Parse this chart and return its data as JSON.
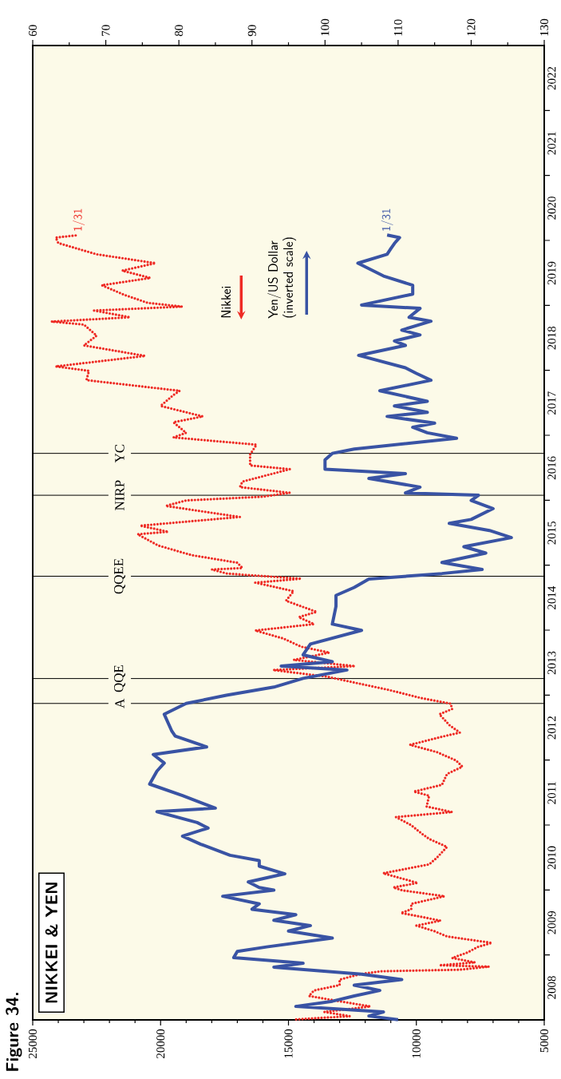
{
  "chart_data": {
    "type": "line",
    "orientation": "horizontal",
    "title": "Figure 34.",
    "subtitle": "NIKKEI & YEN",
    "ylim": [
      "2008-01-01",
      "2023-01-01"
    ],
    "yticks": [
      {
        "value": "2009-01-01",
        "label": null
      },
      {
        "value": "2010-01-01",
        "label": null
      },
      {
        "value": "2011-01-01",
        "label": null
      },
      {
        "value": "2012-01-01",
        "label": null
      },
      {
        "value": "2013-01-01",
        "label": null
      },
      {
        "value": "2014-01-01",
        "label": null
      },
      {
        "value": "2015-01-01",
        "label": null
      },
      {
        "value": "2016-01-01",
        "label": null
      },
      {
        "value": "2017-01-01",
        "label": null
      },
      {
        "value": "2018-01-01",
        "label": null
      },
      {
        "value": "2019-01-01",
        "label": null
      },
      {
        "value": "2020-01-01",
        "label": null
      },
      {
        "value": "2021-01-01",
        "label": null
      },
      {
        "value": "2022-01-01",
        "label": null
      },
      {
        "value": "2008-07-01",
        "label": "2008"
      },
      {
        "value": "2009-07-01",
        "label": "2009"
      },
      {
        "value": "2010-07-01",
        "label": "2010"
      },
      {
        "value": "2011-07-01",
        "label": "2011"
      },
      {
        "value": "2012-07-01",
        "label": "2012"
      },
      {
        "value": "2013-07-01",
        "label": "2013"
      },
      {
        "value": "2014-07-01",
        "label": "2014"
      },
      {
        "value": "2015-07-01",
        "label": "2015"
      },
      {
        "value": "2016-07-01",
        "label": "2016"
      },
      {
        "value": "2017-07-01",
        "label": "2017"
      },
      {
        "value": "2018-07-01",
        "label": "2018"
      },
      {
        "value": "2019-07-01",
        "label": "2019"
      },
      {
        "value": "2020-07-01",
        "label": "2020"
      },
      {
        "value": "2021-07-01",
        "label": "2021"
      },
      {
        "value": "2022-07-01",
        "label": "2022"
      }
    ],
    "xlim": [
      25000,
      5000
    ],
    "xticks": [
      25000,
      20000,
      15000,
      10000,
      5000,
      {
        "value": 6000,
        "label": null
      },
      {
        "value": 7000,
        "label": null
      },
      {
        "value": 8000,
        "label": null
      },
      {
        "value": 9000,
        "label": null
      },
      {
        "value": 11000,
        "label": null
      },
      {
        "value": 12000,
        "label": null
      },
      {
        "value": 13000,
        "label": null
      },
      {
        "value": 14000,
        "label": null
      },
      {
        "value": 16000,
        "label": null
      },
      {
        "value": 17000,
        "label": null
      },
      {
        "value": 18000,
        "label": null
      },
      {
        "value": 19000,
        "label": null
      },
      {
        "value": 21000,
        "label": null
      },
      {
        "value": 22000,
        "label": null
      },
      {
        "value": 23000,
        "label": null
      },
      {
        "value": 24000,
        "label": null
      }
    ],
    "x2lim": [
      60,
      130
    ],
    "x2ticks": [
      60,
      70,
      80,
      90,
      100,
      110,
      120,
      130,
      {
        "value": 65,
        "label": null
      },
      {
        "value": 75,
        "label": null
      },
      {
        "value": 85,
        "label": null
      },
      {
        "value": 95,
        "label": null
      },
      {
        "value": 105,
        "label": null
      },
      {
        "value": 115,
        "label": null
      },
      {
        "value": 125,
        "label": null
      }
    ],
    "ref_lines": [
      {
        "axis": "y",
        "value": "2012-11-15",
        "label": "A"
      },
      {
        "axis": "y",
        "value": "2013-04-04",
        "label": "QQE"
      },
      {
        "axis": "y",
        "value": "2014-10-31",
        "label": "QQEE"
      },
      {
        "axis": "y",
        "value": "2016-01-29",
        "label": "NIRP"
      },
      {
        "axis": "y",
        "value": "2016-09-21",
        "label": "YC"
      }
    ],
    "legend": "top",
    "marker": "none",
    "annotations": [
      "1/31",
      "1/31"
    ],
    "series": [
      {
        "name": "Nikkei",
        "color": "#ee2a24",
        "line_style": "dotted",
        "x": [
          "2008-01-04",
          "2008-01-22",
          "2008-02-15",
          "2008-03-17",
          "2008-04-15",
          "2008-05-15",
          "2008-06-15",
          "2008-07-15",
          "2008-08-15",
          "2008-09-15",
          "2008-10-01",
          "2008-10-10",
          "2008-10-27",
          "2008-11-04",
          "2008-11-20",
          "2008-12-15",
          "2009-01-15",
          "2009-02-15",
          "2009-03-10",
          "2009-04-15",
          "2009-05-15",
          "2009-06-15",
          "2009-07-13",
          "2009-08-25",
          "2009-09-15",
          "2009-10-15",
          "2009-11-27",
          "2009-12-30",
          "2010-01-15",
          "2010-02-10",
          "2010-04-05",
          "2010-05-25",
          "2010-07-01",
          "2010-08-31",
          "2010-10-15",
          "2010-11-15",
          "2010-12-31",
          "2011-02-15",
          "2011-03-15",
          "2011-04-15",
          "2011-06-15",
          "2011-07-08",
          "2011-08-15",
          "2011-10-15",
          "2011-11-25",
          "2011-12-30",
          "2012-02-15",
          "2012-03-27",
          "2012-05-15",
          "2012-06-04",
          "2012-07-15",
          "2012-09-15",
          "2012-10-15",
          "2012-11-14",
          "2012-12-15",
          "2013-01-31",
          "2013-03-15",
          "2013-04-15",
          "2013-05-22",
          "2013-06-13",
          "2013-07-18",
          "2013-08-28",
          "2013-09-30",
          "2013-11-15",
          "2013-12-30",
          "2014-02-04",
          "2014-03-15",
          "2014-04-14",
          "2014-06-15",
          "2014-08-08",
          "2014-09-25",
          "2014-10-17",
          "2014-11-15",
          "2014-12-08",
          "2014-12-16",
          "2015-01-15",
          "2015-02-27",
          "2015-04-22",
          "2015-06-24",
          "2015-07-08",
          "2015-08-11",
          "2015-09-29",
          "2015-11-30",
          "2015-12-31",
          "2016-01-21",
          "2016-02-12",
          "2016-03-15",
          "2016-04-15",
          "2016-06-24",
          "2016-07-15",
          "2016-09-15",
          "2016-11-09",
          "2016-12-20",
          "2017-01-15",
          "2017-03-15",
          "2017-04-17",
          "2017-06-15",
          "2017-08-15",
          "2017-09-08",
          "2017-11-07",
          "2017-12-29",
          "2018-01-23",
          "2018-03-23",
          "2018-05-21",
          "2018-07-15",
          "2018-09-15",
          "2018-10-02",
          "2018-10-26",
          "2018-12-03",
          "2018-12-25",
          "2019-01-15",
          "2019-02-28",
          "2019-04-24",
          "2019-06-04",
          "2019-07-15",
          "2019-08-26",
          "2019-10-15",
          "2019-12-17",
          "2020-01-17",
          "2020-01-31"
        ],
        "values": [
          14700,
          12600,
          13600,
          11800,
          13000,
          14200,
          14000,
          13000,
          13000,
          12200,
          11400,
          8300,
          7160,
          9100,
          7700,
          8600,
          8000,
          7600,
          7050,
          8800,
          9300,
          10000,
          9050,
          10600,
          10200,
          10200,
          8900,
          10550,
          10900,
          9950,
          11300,
          9500,
          9200,
          8800,
          9500,
          9800,
          10200,
          10800,
          8600,
          9600,
          9500,
          10100,
          9000,
          8800,
          8200,
          8450,
          9200,
          10250,
          8900,
          8300,
          8700,
          9100,
          8600,
          8660,
          9800,
          11100,
          12500,
          13500,
          15600,
          12400,
          14800,
          13400,
          14500,
          15200,
          16300,
          14000,
          14600,
          13900,
          15100,
          14800,
          16300,
          14500,
          17400,
          18000,
          16800,
          17000,
          18800,
          20100,
          20900,
          19700,
          20800,
          16900,
          19800,
          19000,
          16000,
          14950,
          16900,
          16800,
          14950,
          16500,
          16500,
          16250,
          19500,
          19000,
          19500,
          18350,
          20000,
          19500,
          19250,
          22900,
          22800,
          24100,
          20600,
          23000,
          22500,
          23000,
          24270,
          21200,
          22600,
          19150,
          20500,
          21400,
          22300,
          20400,
          21500,
          20200,
          22500,
          24000,
          24100,
          23200
        ]
      },
      {
        "name": "Yen/US Dollar (inverted scale)",
        "color": "#3953a4",
        "line_style": "solid",
        "axis": "x2",
        "x": [
          "2008-01-02",
          "2008-01-23",
          "2008-02-15",
          "2008-03-17",
          "2008-04-15",
          "2008-05-15",
          "2008-06-15",
          "2008-07-15",
          "2008-08-15",
          "2008-09-15",
          "2008-10-24",
          "2008-11-15",
          "2008-12-17",
          "2009-01-21",
          "2009-02-15",
          "2009-04-06",
          "2009-05-15",
          "2009-06-15",
          "2009-07-15",
          "2009-08-15",
          "2009-09-15",
          "2009-10-15",
          "2009-11-27",
          "2009-12-31",
          "2010-01-15",
          "2010-02-15",
          "2010-04-02",
          "2010-05-15",
          "2010-06-15",
          "2010-07-15",
          "2010-09-15",
          "2010-10-31",
          "2010-12-15",
          "2011-01-15",
          "2011-03-17",
          "2011-04-06",
          "2011-06-15",
          "2011-08-19",
          "2011-10-31",
          "2011-12-15",
          "2012-02-01",
          "2012-03-15",
          "2012-05-15",
          "2012-06-15",
          "2012-09-15",
          "2012-11-15",
          "2012-12-31",
          "2013-02-15",
          "2013-04-05",
          "2013-05-22",
          "2013-06-13",
          "2013-07-08",
          "2013-08-15",
          "2013-10-15",
          "2013-12-31",
          "2014-02-04",
          "2014-05-15",
          "2014-07-15",
          "2014-08-29",
          "2014-10-15",
          "2014-11-15",
          "2014-12-08",
          "2015-01-16",
          "2015-03-10",
          "2015-04-15",
          "2015-06-05",
          "2015-07-15",
          "2015-08-24",
          "2015-09-15",
          "2015-11-15",
          "2015-12-31",
          "2016-01-29",
          "2016-02-11",
          "2016-03-15",
          "2016-05-03",
          "2016-05-30",
          "2016-06-24",
          "2016-08-16",
          "2016-09-21",
          "2016-10-15",
          "2016-12-15",
          "2017-01-15",
          "2017-02-15",
          "2017-03-10",
          "2017-04-17",
          "2017-05-10",
          "2017-06-15",
          "2017-07-11",
          "2017-09-08",
          "2017-11-06",
          "2017-12-15",
          "2018-01-15",
          "2018-03-26",
          "2018-05-21",
          "2018-06-15",
          "2018-07-19",
          "2018-08-15",
          "2018-10-04",
          "2018-10-26",
          "2018-12-15",
          "2019-01-03",
          "2019-03-05",
          "2019-04-24",
          "2019-06-15",
          "2019-08-26",
          "2019-10-15",
          "2019-11-15",
          "2019-12-15",
          "2020-01-17",
          "2020-01-31"
        ],
        "values": [
          110,
          106,
          108,
          96,
          101,
          104,
          107.5,
          104,
          110.5,
          105,
          93,
          97,
          87.5,
          88,
          92,
          101,
          95,
          98,
          93,
          96,
          90,
          91,
          86,
          93,
          91,
          89.5,
          94.5,
          91,
          91,
          87,
          83,
          80.5,
          84,
          82.5,
          77,
          85,
          80.5,
          76,
          77,
          78,
          76.5,
          83.8,
          79.5,
          79,
          78,
          81,
          86.5,
          93,
          97,
          103,
          94,
          101,
          97,
          98,
          105,
          101,
          101.5,
          101.5,
          104,
          106,
          116,
          121.5,
          116,
          122,
          119,
          125.5,
          122.5,
          117,
          120,
          123,
          120,
          121,
          111,
          113,
          106,
          111,
          100,
          100,
          101,
          104,
          118,
          114,
          112,
          115,
          108.5,
          114,
          109.5,
          114,
          107.5,
          114.5,
          112.5,
          111,
          104.6,
          111,
          109.5,
          113,
          110.5,
          114.5,
          111.5,
          113,
          105,
          112,
          112,
          108,
          104.5,
          108.5,
          109,
          109.5,
          110.2,
          108.5
        ]
      }
    ]
  }
}
